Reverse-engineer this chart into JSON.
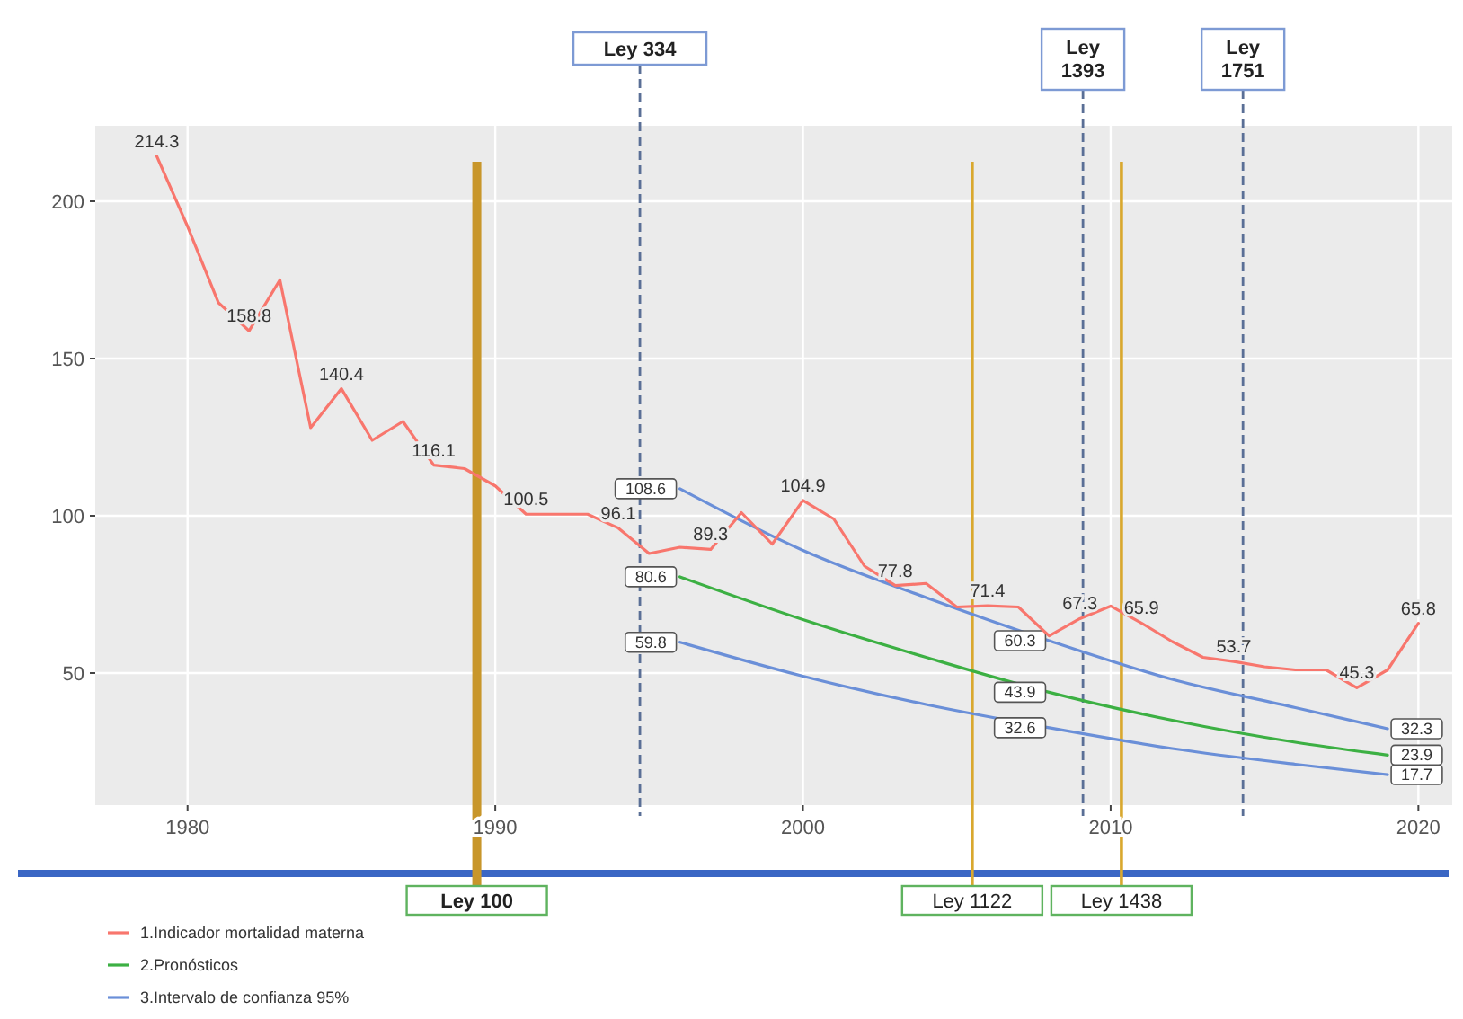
{
  "chart_data": {
    "type": "line",
    "xlim": [
      1977,
      2021.1
    ],
    "xticks": [
      1980,
      1990,
      2000,
      2010,
      2020
    ],
    "ylim": [
      8,
      224
    ],
    "yticks": [
      50,
      100,
      150,
      200
    ],
    "grid": true,
    "legend": "bottom left",
    "series": [
      {
        "name": "1.Indicador mortalidad materna",
        "color": "#f8766d",
        "x": [
          1979,
          1980,
          1981,
          1982,
          1983,
          1984,
          1985,
          1986,
          1987,
          1988,
          1989,
          1990,
          1991,
          1992,
          1993,
          1994,
          1995,
          1996,
          1997,
          1998,
          1999,
          2000,
          2001,
          2002,
          2003,
          2004,
          2005,
          2006,
          2007,
          2008,
          2009,
          2010,
          2011,
          2012,
          2013,
          2014,
          2015,
          2016,
          2017,
          2018,
          2019,
          2020
        ],
        "values": [
          214.3,
          192,
          167.8,
          158.8,
          175,
          128,
          140.4,
          124,
          130,
          116.1,
          115,
          109.5,
          100.5,
          100.5,
          100.5,
          96.1,
          88,
          90,
          89.3,
          101,
          91,
          104.9,
          99,
          84,
          77.8,
          78.5,
          71,
          71.4,
          71,
          61.8,
          67.3,
          71.3,
          65.9,
          60,
          55,
          53.7,
          52,
          51,
          51,
          45.3,
          51,
          65.8
        ],
        "value_labels": [
          "214.3",
          null,
          null,
          "158.8",
          null,
          null,
          "140.4",
          null,
          null,
          "116.1",
          null,
          null,
          "100.5",
          null,
          null,
          "96.1",
          null,
          null,
          "89.3",
          null,
          null,
          "104.9",
          null,
          null,
          "77.8",
          null,
          null,
          "71.4",
          null,
          null,
          "67.3",
          null,
          "65.9",
          null,
          null,
          "53.7",
          null,
          null,
          null,
          "45.3",
          null,
          "65.8"
        ]
      },
      {
        "name": "2.Pronósticos",
        "color": "#3cb043",
        "x": [
          1996,
          2000,
          2004,
          2008,
          2012,
          2016,
          2019
        ],
        "values": [
          80.6,
          67,
          55,
          43.9,
          35,
          28,
          23.9
        ],
        "value_labels": [
          "80.6",
          null,
          null,
          "43.9",
          null,
          null,
          "23.9"
        ]
      },
      {
        "name": "3.Intervalo de confianza 95%",
        "color": "#6a8fd8",
        "x": [
          1996,
          2000,
          2004,
          2008,
          2012,
          2016,
          2019
        ],
        "values": [
          108.6,
          89,
          74,
          60.3,
          48,
          39,
          32.3
        ],
        "value_labels": [
          "108.6",
          null,
          null,
          "60.3",
          null,
          null,
          "32.3"
        ]
      },
      {
        "color": "#6a8fd8",
        "x": [
          1996,
          2000,
          2004,
          2008,
          2012,
          2016,
          2019
        ],
        "values": [
          59.8,
          49,
          40,
          32.6,
          26,
          21,
          17.7
        ],
        "value_labels": [
          "59.8",
          null,
          null,
          "32.6",
          null,
          null,
          "17.7"
        ]
      }
    ],
    "ref_lines": [
      {
        "axis": "x",
        "value": 1989.4,
        "label": "Ley 100",
        "color": "#c8962a",
        "line_style": "solid"
      },
      {
        "axis": "x",
        "value": 1994.7,
        "label": "Ley 334",
        "color": "#5a6f96",
        "line_style": "dashed"
      },
      {
        "axis": "x",
        "value": 2005.5,
        "label": "Ley 1122",
        "color": "#d9a82e",
        "line_style": "solid"
      },
      {
        "axis": "x",
        "value": 2009.1,
        "label": "Ley 1393",
        "color": "#5a6f96",
        "line_style": "dashed"
      },
      {
        "axis": "x",
        "value": 2010.35,
        "label": "Ley 1438",
        "color": "#d9a82e",
        "line_style": "solid"
      },
      {
        "axis": "x",
        "value": 2014.3,
        "label": "Ley 1751",
        "color": "#5a6f96",
        "line_style": "dashed"
      }
    ]
  }
}
